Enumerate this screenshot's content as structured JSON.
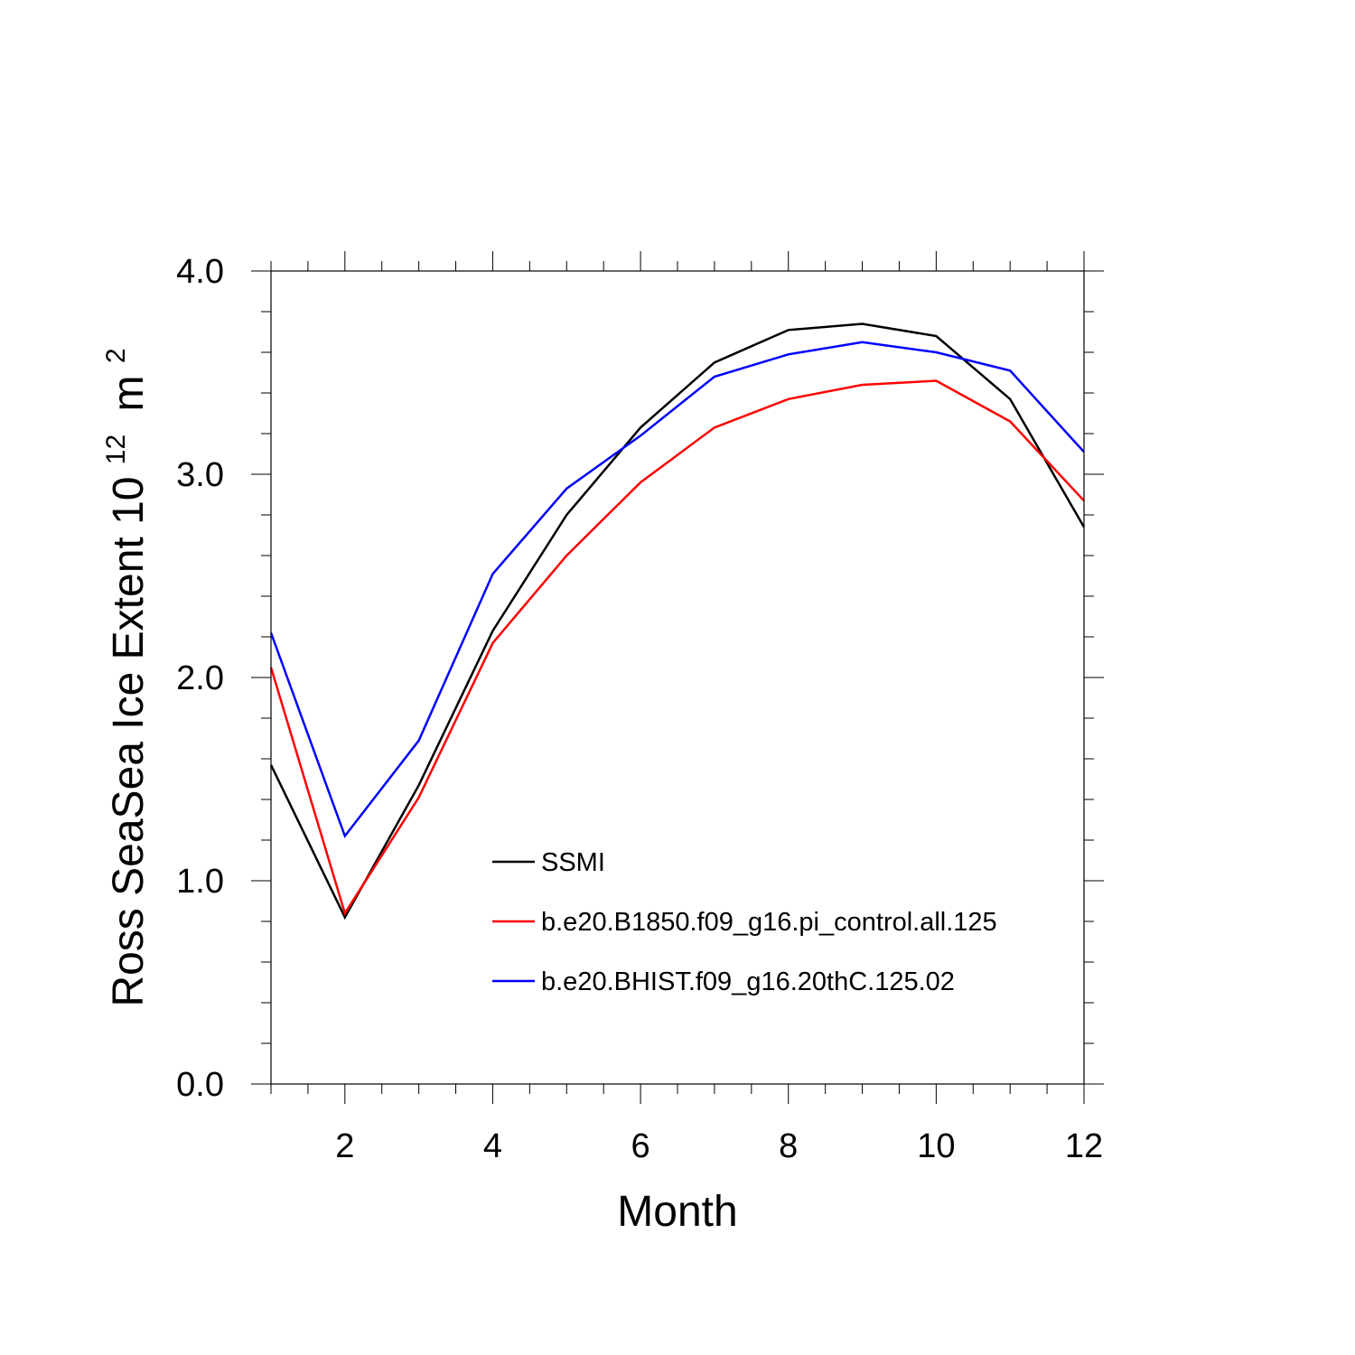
{
  "chart_data": {
    "type": "line",
    "xlabel": "Month",
    "ylabel_prefix": "Ross SeaSea Ice Extent 10",
    "ylabel_exponent": "12",
    "ylabel_unit": "m",
    "ylabel_unit_exponent": "2",
    "xlim": [
      1,
      12
    ],
    "ylim": [
      0,
      4
    ],
    "x_ticks": [
      2,
      4,
      6,
      8,
      10,
      12
    ],
    "x_tick_labels": [
      "2",
      "4",
      "6",
      "8",
      "10",
      "12"
    ],
    "y_ticks": [
      0,
      1,
      2,
      3,
      4
    ],
    "y_tick_labels": [
      "0.0",
      "1.0",
      "2.0",
      "3.0",
      "4.0"
    ],
    "grid": false,
    "legend_position": "center-bottom inside",
    "x": [
      1,
      2,
      3,
      4,
      5,
      6,
      7,
      8,
      9,
      10,
      11,
      12
    ],
    "series": [
      {
        "name": "SSMI",
        "color": "#000000",
        "values": [
          1.57,
          0.82,
          1.47,
          2.23,
          2.8,
          3.23,
          3.55,
          3.71,
          3.74,
          3.68,
          3.37,
          2.74
        ]
      },
      {
        "name": "b.e20.B1850.f09_g16.pi_control.all.125",
        "color": "#ff0000",
        "values": [
          2.05,
          0.84,
          1.41,
          2.17,
          2.6,
          2.96,
          3.23,
          3.37,
          3.44,
          3.46,
          3.26,
          2.87
        ]
      },
      {
        "name": "b.e20.BHIST.f09_g16.20thC.125.02",
        "color": "#0000ff",
        "values": [
          2.22,
          1.22,
          1.69,
          2.51,
          2.93,
          3.19,
          3.48,
          3.59,
          3.65,
          3.6,
          3.51,
          3.11
        ]
      }
    ]
  }
}
